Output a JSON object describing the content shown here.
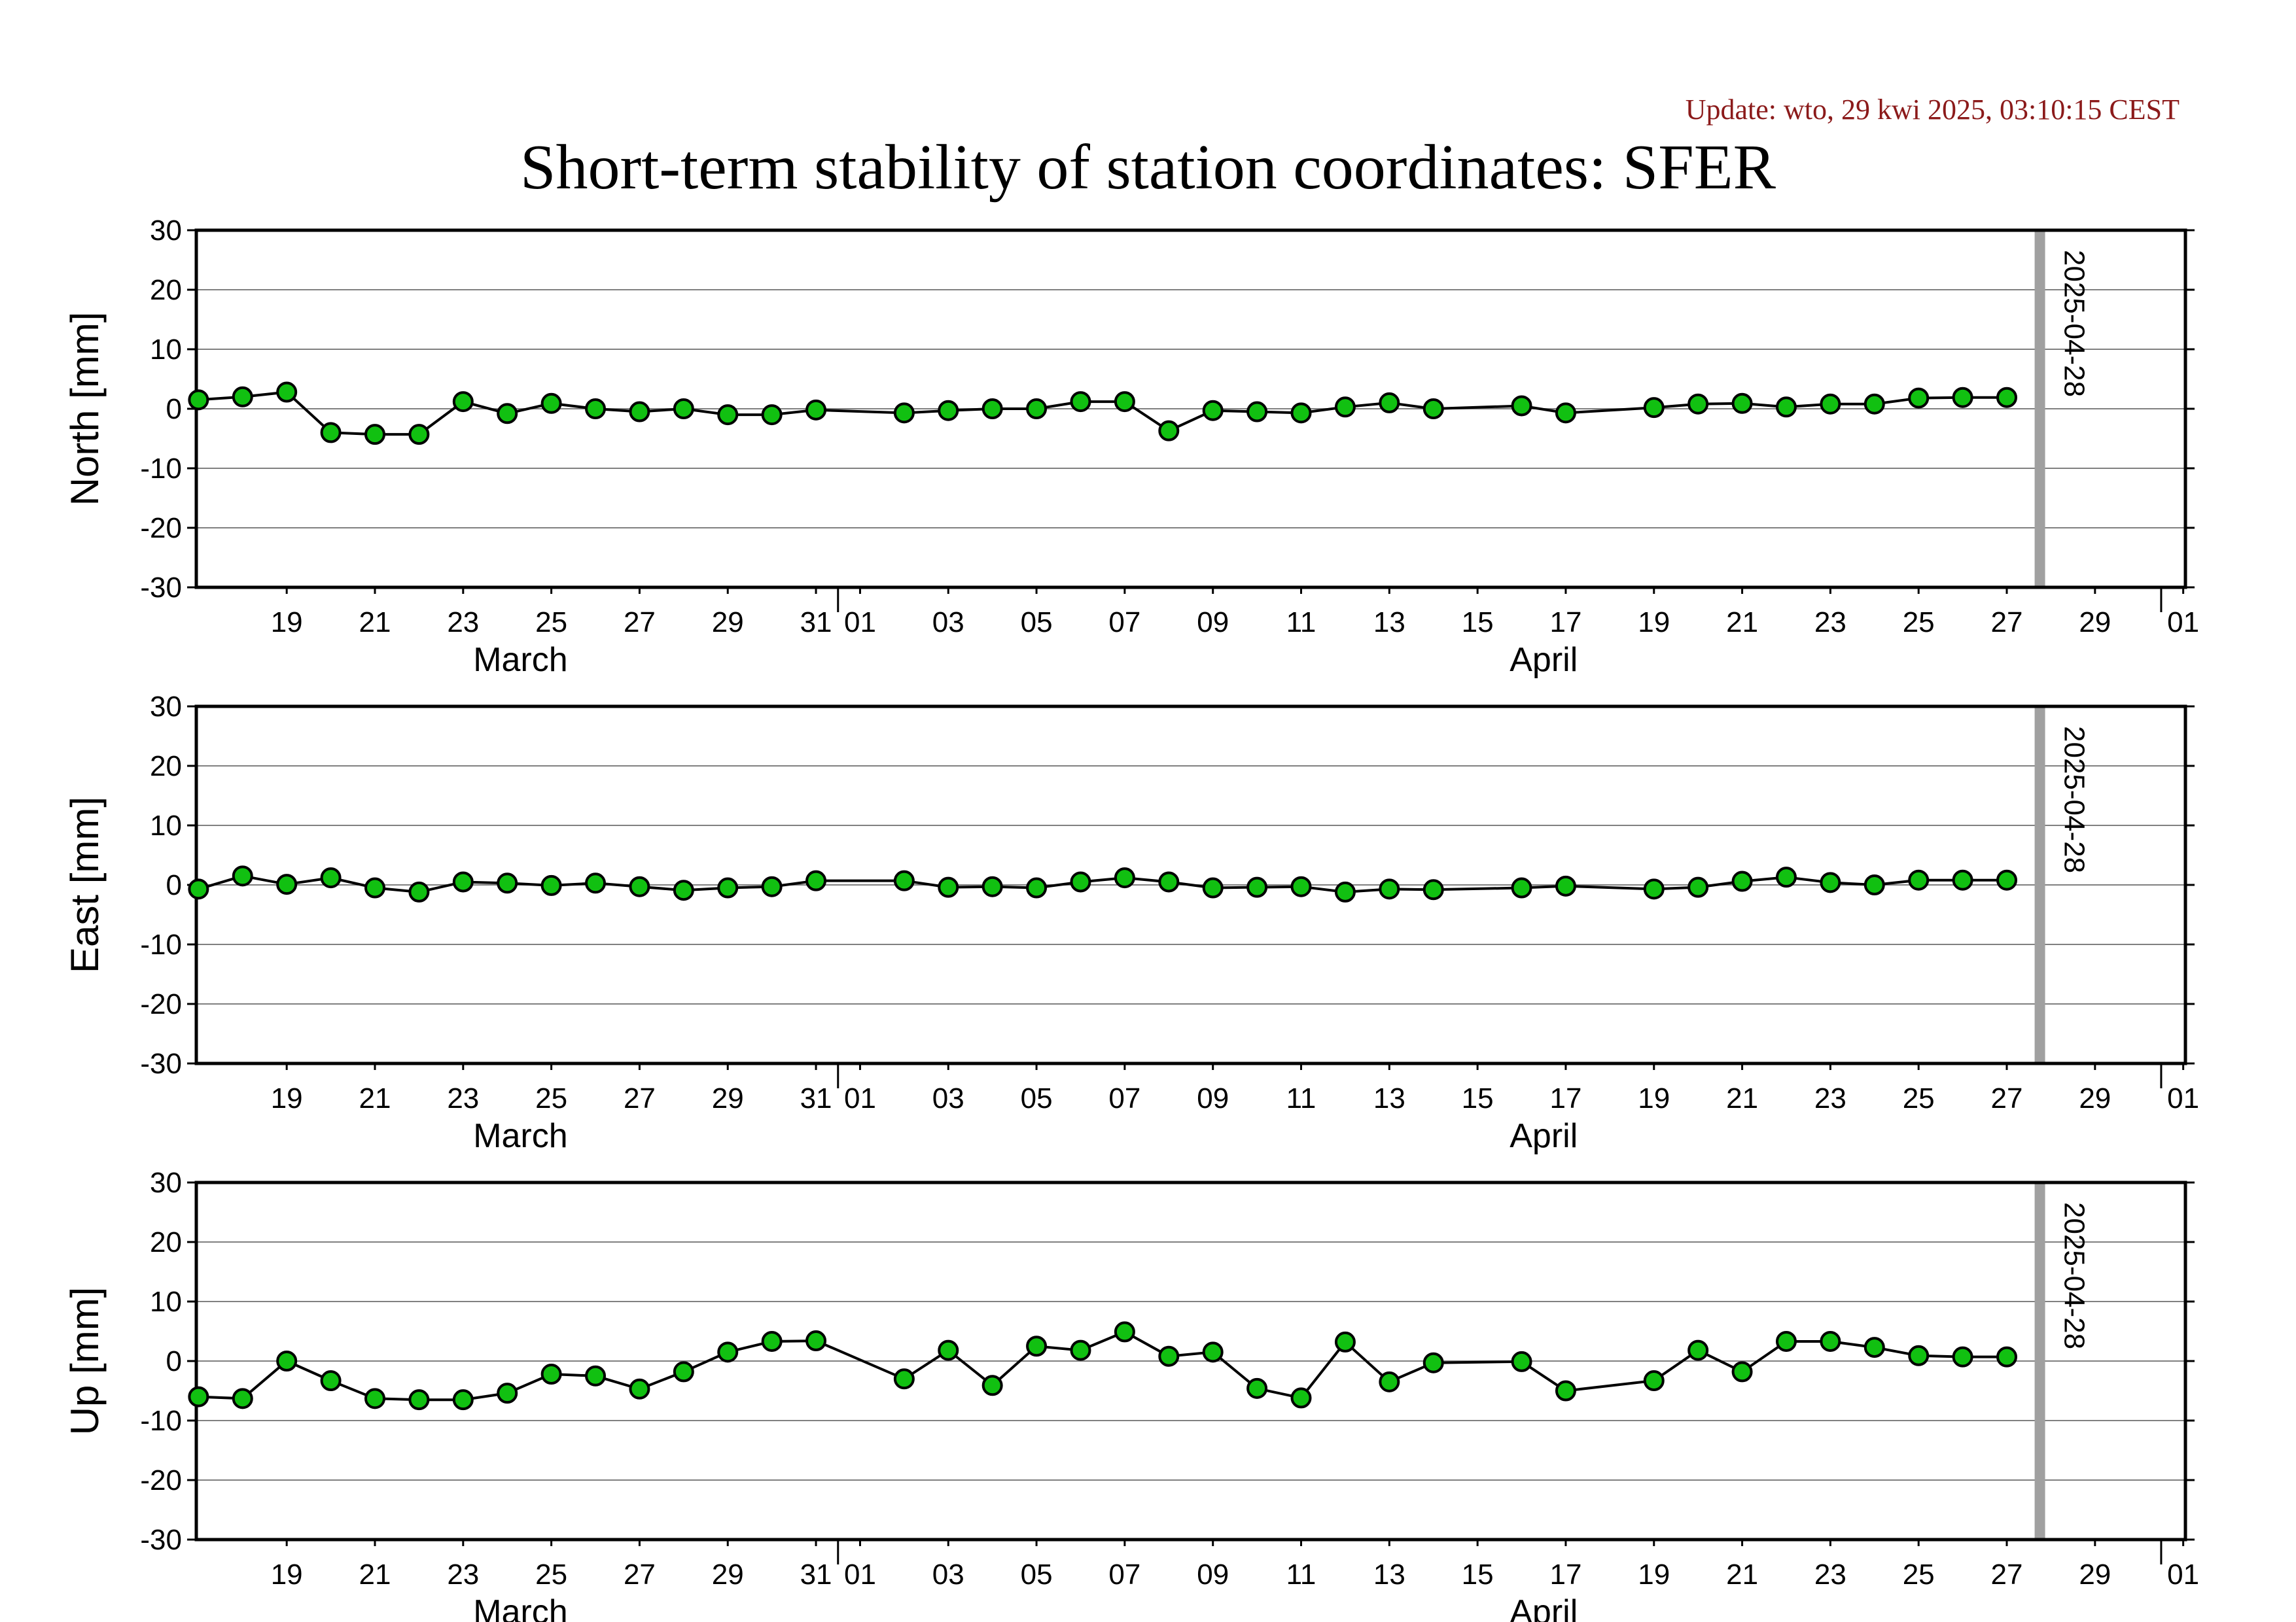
{
  "update_text": "Update: wto, 29 kwi 2025, 03:10:15 CEST",
  "title": "Short-term stability of station coordinates: SFER",
  "colors": {
    "marker_fill": "#11c011",
    "marker_stroke": "#000000",
    "line": "#000000",
    "grid": "#808080",
    "vline": "#a0a0a0",
    "update": "#8b1a1a"
  },
  "chart_data": [
    {
      "type": "line",
      "ylabel": "North [mm]",
      "ylim": [
        -30,
        30
      ],
      "yticks": [
        -30,
        -20,
        -10,
        0,
        10,
        20,
        30
      ],
      "grid": "horizontal",
      "xlim": [
        "2025-03-17",
        "2025-05-01"
      ],
      "xticks": [
        "19",
        "21",
        "23",
        "25",
        "27",
        "29",
        "31",
        "01",
        "03",
        "05",
        "07",
        "09",
        "11",
        "13",
        "15",
        "17",
        "19",
        "21",
        "23",
        "25",
        "27",
        "29",
        "01"
      ],
      "month_labels": [
        "March",
        "April"
      ],
      "vline_label": "2025-04-28",
      "series": [
        {
          "x": [
            "2025-03-17",
            "2025-03-18",
            "2025-03-19",
            "2025-03-20",
            "2025-03-21",
            "2025-03-22",
            "2025-03-23",
            "2025-03-24",
            "2025-03-25",
            "2025-03-26",
            "2025-03-27",
            "2025-03-28",
            "2025-03-29",
            "2025-03-30",
            "2025-03-31",
            "2025-04-02",
            "2025-04-03",
            "2025-04-04",
            "2025-04-05",
            "2025-04-06",
            "2025-04-07",
            "2025-04-08",
            "2025-04-09",
            "2025-04-10",
            "2025-04-11",
            "2025-04-12",
            "2025-04-13",
            "2025-04-14",
            "2025-04-16",
            "2025-04-17",
            "2025-04-19",
            "2025-04-20",
            "2025-04-21",
            "2025-04-22",
            "2025-04-23",
            "2025-04-24",
            "2025-04-25",
            "2025-04-26",
            "2025-04-27"
          ],
          "y": [
            1.5,
            2,
            2.8,
            -4,
            -4.3,
            -4.3,
            1.2,
            -0.8,
            0.9,
            0,
            -0.5,
            0,
            -1,
            -1,
            -0.2,
            -0.7,
            -0.3,
            0,
            0,
            1.2,
            1.2,
            -3.7,
            -0.3,
            -0.5,
            -0.7,
            0.3,
            1,
            0,
            0.5,
            -0.7,
            0.2,
            0.8,
            0.9,
            0.3,
            0.8,
            0.8,
            1.8,
            1.9,
            1.9
          ]
        }
      ]
    },
    {
      "type": "line",
      "ylabel": "East [mm]",
      "ylim": [
        -30,
        30
      ],
      "yticks": [
        -30,
        -20,
        -10,
        0,
        10,
        20,
        30
      ],
      "grid": "horizontal",
      "xlim": [
        "2025-03-17",
        "2025-05-01"
      ],
      "xticks": [
        "19",
        "21",
        "23",
        "25",
        "27",
        "29",
        "31",
        "01",
        "03",
        "05",
        "07",
        "09",
        "11",
        "13",
        "15",
        "17",
        "19",
        "21",
        "23",
        "25",
        "27",
        "29",
        "01"
      ],
      "month_labels": [
        "March",
        "April"
      ],
      "vline_label": "2025-04-28",
      "series": [
        {
          "x": [
            "2025-03-17",
            "2025-03-18",
            "2025-03-19",
            "2025-03-20",
            "2025-03-21",
            "2025-03-22",
            "2025-03-23",
            "2025-03-24",
            "2025-03-25",
            "2025-03-26",
            "2025-03-27",
            "2025-03-28",
            "2025-03-29",
            "2025-03-30",
            "2025-03-31",
            "2025-04-02",
            "2025-04-03",
            "2025-04-04",
            "2025-04-05",
            "2025-04-06",
            "2025-04-07",
            "2025-04-08",
            "2025-04-09",
            "2025-04-10",
            "2025-04-11",
            "2025-04-12",
            "2025-04-13",
            "2025-04-14",
            "2025-04-16",
            "2025-04-17",
            "2025-04-19",
            "2025-04-20",
            "2025-04-21",
            "2025-04-22",
            "2025-04-23",
            "2025-04-24",
            "2025-04-25",
            "2025-04-26",
            "2025-04-27"
          ],
          "y": [
            -0.7,
            1.5,
            0.1,
            1.2,
            -0.5,
            -1.2,
            0.5,
            0.3,
            -0.1,
            0.3,
            -0.3,
            -0.9,
            -0.5,
            -0.3,
            0.7,
            0.7,
            -0.4,
            -0.3,
            -0.5,
            0.5,
            1.2,
            0.5,
            -0.5,
            -0.4,
            -0.3,
            -1.2,
            -0.7,
            -0.8,
            -0.5,
            -0.2,
            -0.7,
            -0.4,
            0.6,
            1.3,
            0.4,
            0,
            0.8,
            0.8,
            0.8
          ]
        }
      ]
    },
    {
      "type": "line",
      "ylabel": "Up [mm]",
      "ylim": [
        -30,
        30
      ],
      "yticks": [
        -30,
        -20,
        -10,
        0,
        10,
        20,
        30
      ],
      "grid": "horizontal",
      "xlim": [
        "2025-03-17",
        "2025-05-01"
      ],
      "xticks": [
        "19",
        "21",
        "23",
        "25",
        "27",
        "29",
        "31",
        "01",
        "03",
        "05",
        "07",
        "09",
        "11",
        "13",
        "15",
        "17",
        "19",
        "21",
        "23",
        "25",
        "27",
        "29",
        "01"
      ],
      "month_labels": [
        "March",
        "April"
      ],
      "vline_label": "2025-04-28",
      "series": [
        {
          "x": [
            "2025-03-17",
            "2025-03-18",
            "2025-03-19",
            "2025-03-20",
            "2025-03-21",
            "2025-03-22",
            "2025-03-23",
            "2025-03-24",
            "2025-03-25",
            "2025-03-26",
            "2025-03-27",
            "2025-03-28",
            "2025-03-29",
            "2025-03-30",
            "2025-03-31",
            "2025-04-02",
            "2025-04-03",
            "2025-04-04",
            "2025-04-05",
            "2025-04-06",
            "2025-04-07",
            "2025-04-08",
            "2025-04-09",
            "2025-04-10",
            "2025-04-11",
            "2025-04-12",
            "2025-04-13",
            "2025-04-14",
            "2025-04-16",
            "2025-04-17",
            "2025-04-19",
            "2025-04-20",
            "2025-04-21",
            "2025-04-22",
            "2025-04-23",
            "2025-04-24",
            "2025-04-25",
            "2025-04-26",
            "2025-04-27"
          ],
          "y": [
            -6,
            -6.3,
            0,
            -3.3,
            -6.3,
            -6.5,
            -6.5,
            -5.4,
            -2.2,
            -2.5,
            -4.7,
            -1.8,
            1.5,
            3.3,
            3.4,
            -3,
            1.8,
            -4.1,
            2.5,
            1.8,
            4.9,
            0.8,
            1.5,
            -4.6,
            -6.2,
            3.2,
            -3.5,
            -0.3,
            -0.1,
            -5,
            -3.3,
            1.8,
            -1.8,
            3.3,
            3.3,
            2.3,
            0.9,
            0.7,
            0.7
          ]
        }
      ]
    }
  ]
}
